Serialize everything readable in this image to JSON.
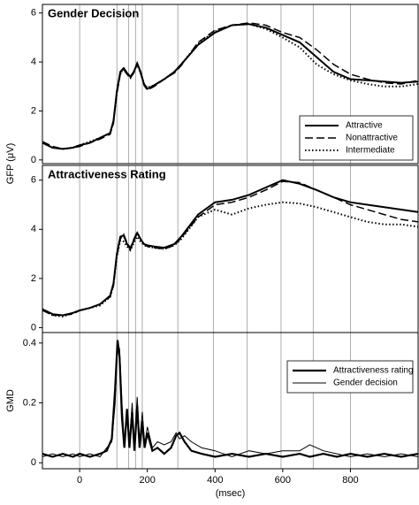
{
  "chart_data": [
    {
      "type": "line",
      "title": "Gender Decision",
      "ylabel": "GFP (μV)",
      "xlim": [
        -110,
        1000
      ],
      "ylim": [
        -0.15,
        6.35
      ],
      "yticks": [
        0,
        2,
        4,
        6
      ],
      "vlines": [
        0,
        110,
        145,
        165,
        185,
        290,
        395,
        495,
        595,
        690,
        800
      ],
      "legend": "lower right",
      "x": [
        -110,
        -80,
        -50,
        -20,
        0,
        30,
        60,
        90,
        100,
        110,
        120,
        130,
        140,
        150,
        160,
        170,
        180,
        190,
        200,
        220,
        250,
        280,
        300,
        350,
        400,
        450,
        500,
        550,
        600,
        650,
        700,
        750,
        800,
        850,
        900,
        950,
        1000
      ],
      "series": [
        {
          "name": "Attractive",
          "color": "#000000",
          "dash": "solid",
          "width": 2,
          "values": [
            0.7,
            0.5,
            0.45,
            0.5,
            0.6,
            0.7,
            0.9,
            1.1,
            1.6,
            2.8,
            3.6,
            3.75,
            3.55,
            3.4,
            3.6,
            3.95,
            3.6,
            3.1,
            2.9,
            3.05,
            3.3,
            3.6,
            3.9,
            4.7,
            5.2,
            5.5,
            5.55,
            5.4,
            5.1,
            4.8,
            4.2,
            3.6,
            3.3,
            3.25,
            3.2,
            3.15,
            3.2
          ]
        },
        {
          "name": "Nonattractive",
          "color": "#000000",
          "dash": "dashed",
          "width": 1.5,
          "values": [
            0.75,
            0.55,
            0.45,
            0.5,
            0.55,
            0.7,
            0.85,
            1.05,
            1.5,
            2.7,
            3.5,
            3.7,
            3.5,
            3.35,
            3.55,
            3.9,
            3.55,
            3.05,
            2.85,
            3.0,
            3.3,
            3.55,
            3.85,
            4.8,
            5.3,
            5.5,
            5.6,
            5.5,
            5.2,
            5.0,
            4.5,
            3.9,
            3.5,
            3.3,
            3.15,
            3.1,
            3.25
          ]
        },
        {
          "name": "Intermediate",
          "color": "#000000",
          "dash": "dotted",
          "width": 2,
          "values": [
            0.7,
            0.5,
            0.45,
            0.5,
            0.6,
            0.75,
            0.9,
            1.1,
            1.55,
            2.75,
            3.55,
            3.7,
            3.5,
            3.35,
            3.6,
            3.9,
            3.55,
            3.1,
            2.95,
            3.05,
            3.3,
            3.6,
            3.9,
            4.75,
            5.25,
            5.5,
            5.55,
            5.35,
            5.0,
            4.6,
            3.9,
            3.5,
            3.25,
            3.1,
            3.0,
            3.0,
            3.1
          ]
        }
      ]
    },
    {
      "type": "line",
      "title": "Attractiveness Rating",
      "xlim": [
        -110,
        1000
      ],
      "ylim": [
        -0.2,
        6.6
      ],
      "yticks": [
        0,
        2,
        4,
        6
      ],
      "vlines": [
        0,
        110,
        145,
        165,
        185,
        290,
        395,
        495,
        595,
        690,
        800
      ],
      "x": [
        -110,
        -80,
        -50,
        -20,
        0,
        30,
        60,
        90,
        100,
        110,
        120,
        130,
        140,
        150,
        160,
        170,
        180,
        190,
        200,
        220,
        250,
        280,
        300,
        350,
        400,
        450,
        500,
        550,
        600,
        650,
        700,
        750,
        800,
        850,
        900,
        950,
        1000
      ],
      "series": [
        {
          "name": "Attractive",
          "color": "#000000",
          "dash": "solid",
          "width": 2,
          "values": [
            0.75,
            0.55,
            0.5,
            0.6,
            0.7,
            0.8,
            0.95,
            1.3,
            1.8,
            3.0,
            3.7,
            3.75,
            3.4,
            3.2,
            3.55,
            3.85,
            3.6,
            3.4,
            3.35,
            3.3,
            3.25,
            3.4,
            3.7,
            4.6,
            5.1,
            5.2,
            5.4,
            5.7,
            6.0,
            5.85,
            5.6,
            5.3,
            5.1,
            5.0,
            4.9,
            4.8,
            4.7
          ]
        },
        {
          "name": "Nonattractive",
          "color": "#000000",
          "dash": "dashed",
          "width": 1.5,
          "values": [
            0.7,
            0.5,
            0.5,
            0.55,
            0.7,
            0.8,
            0.95,
            1.25,
            1.7,
            2.9,
            3.6,
            3.8,
            3.45,
            3.25,
            3.6,
            3.9,
            3.6,
            3.4,
            3.3,
            3.25,
            3.2,
            3.35,
            3.65,
            4.5,
            5.0,
            5.1,
            5.3,
            5.6,
            5.95,
            5.9,
            5.6,
            5.3,
            5.0,
            4.8,
            4.6,
            4.4,
            4.3
          ]
        },
        {
          "name": "Intermediate",
          "color": "#000000",
          "dash": "dotted",
          "width": 2,
          "values": [
            0.75,
            0.5,
            0.45,
            0.6,
            0.7,
            0.8,
            0.9,
            1.25,
            1.75,
            2.9,
            3.55,
            3.5,
            3.3,
            3.15,
            3.45,
            3.7,
            3.5,
            3.35,
            3.3,
            3.25,
            3.2,
            3.35,
            3.6,
            4.5,
            4.8,
            4.6,
            4.85,
            5.0,
            5.1,
            5.05,
            4.9,
            4.7,
            4.5,
            4.3,
            4.2,
            4.2,
            4.1
          ]
        }
      ]
    },
    {
      "type": "line",
      "ylabel": "GMD",
      "xlabel": "(msec)",
      "xlim": [
        -110,
        1000
      ],
      "ylim": [
        -0.02,
        0.435
      ],
      "yticks": [
        0,
        0.2,
        0.4
      ],
      "xticks": [
        0,
        200,
        400,
        600,
        800
      ],
      "vlines": [
        0,
        110,
        145,
        165,
        185,
        290,
        395,
        495,
        595,
        690,
        800
      ],
      "legend": "upper right",
      "x": [
        -110,
        -80,
        -50,
        -20,
        0,
        30,
        60,
        80,
        95,
        105,
        112,
        118,
        125,
        132,
        140,
        147,
        155,
        162,
        170,
        177,
        185,
        192,
        200,
        215,
        230,
        250,
        270,
        285,
        295,
        310,
        330,
        360,
        400,
        450,
        500,
        550,
        600,
        650,
        680,
        720,
        760,
        800,
        850,
        900,
        950,
        1000
      ],
      "series": [
        {
          "name": "Attractiveness rating",
          "color": "#000000",
          "dash": "solid",
          "width": 2.2,
          "values": [
            0.03,
            0.02,
            0.03,
            0.02,
            0.03,
            0.02,
            0.03,
            0.04,
            0.08,
            0.25,
            0.41,
            0.35,
            0.15,
            0.05,
            0.18,
            0.05,
            0.17,
            0.04,
            0.19,
            0.05,
            0.14,
            0.05,
            0.1,
            0.04,
            0.05,
            0.03,
            0.05,
            0.09,
            0.1,
            0.07,
            0.04,
            0.03,
            0.02,
            0.03,
            0.02,
            0.03,
            0.02,
            0.03,
            0.02,
            0.03,
            0.02,
            0.03,
            0.02,
            0.03,
            0.02,
            0.03
          ]
        },
        {
          "name": "Gender decision",
          "color": "#000000",
          "dash": "solid",
          "width": 1,
          "values": [
            0.02,
            0.03,
            0.02,
            0.03,
            0.02,
            0.03,
            0.02,
            0.05,
            0.07,
            0.2,
            0.4,
            0.38,
            0.2,
            0.06,
            0.15,
            0.06,
            0.2,
            0.06,
            0.22,
            0.07,
            0.17,
            0.06,
            0.12,
            0.05,
            0.07,
            0.06,
            0.07,
            0.1,
            0.08,
            0.09,
            0.07,
            0.05,
            0.04,
            0.02,
            0.04,
            0.03,
            0.04,
            0.04,
            0.06,
            0.04,
            0.03,
            0.02,
            0.03,
            0.02,
            0.03,
            0.02
          ]
        }
      ]
    }
  ]
}
